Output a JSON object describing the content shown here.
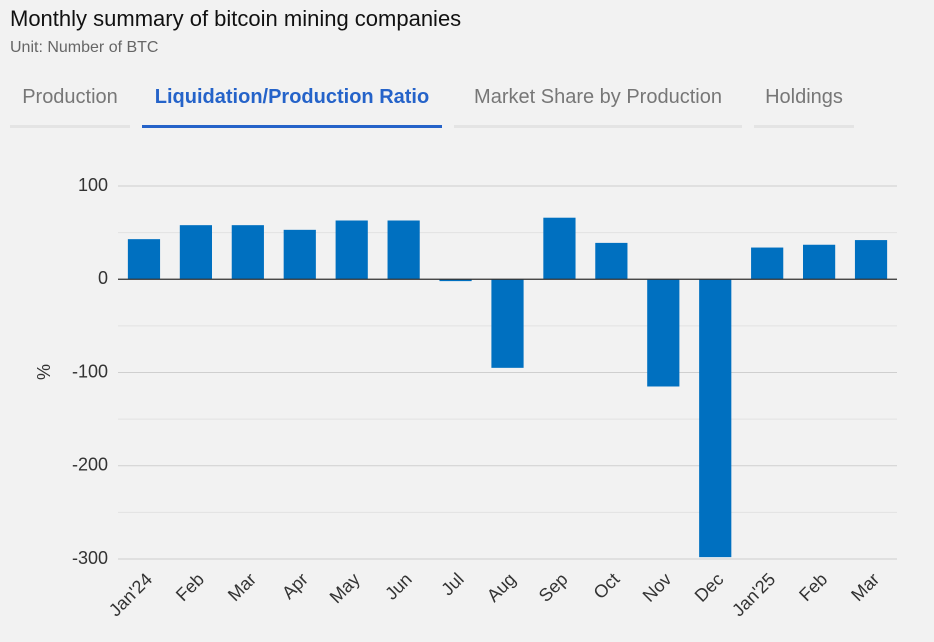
{
  "header": {
    "title": "Monthly summary of bitcoin mining companies",
    "subtitle": "Unit: Number of BTC"
  },
  "tabs": [
    "Production",
    "Liquidation/Production Ratio",
    "Market Share by Production",
    "Holdings"
  ],
  "active_tab": 1,
  "chart_data": {
    "type": "bar",
    "y_label": "%",
    "categories": [
      "Jan'24",
      "Feb",
      "Mar",
      "Apr",
      "May",
      "Jun",
      "Jul",
      "Aug",
      "Sep",
      "Oct",
      "Nov",
      "Dec",
      "Jan'25",
      "Feb",
      "Mar"
    ],
    "values": [
      43,
      58,
      58,
      53,
      63,
      63,
      -2,
      -95,
      66,
      39,
      -115,
      -298,
      34,
      37,
      42
    ],
    "color": "#0070c0",
    "ylim": [
      -300,
      100
    ],
    "yticks": [
      -300,
      -200,
      -100,
      0,
      100
    ],
    "minor_yticks": [
      -250,
      -150,
      -50,
      50
    ],
    "grid": true
  }
}
